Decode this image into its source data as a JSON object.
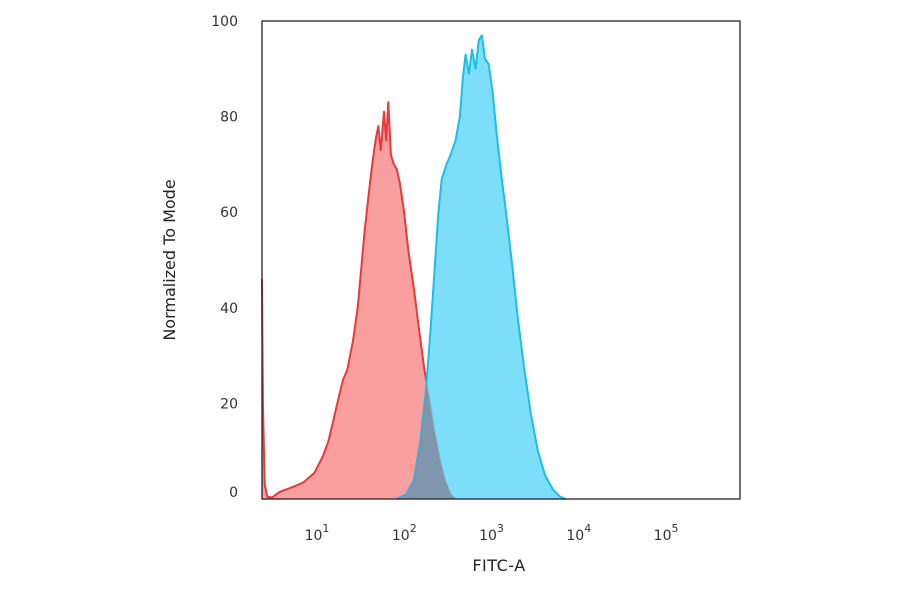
{
  "chart_data": {
    "type": "area",
    "title": "",
    "xlabel": "FITC-A",
    "ylabel": "Normalized To Mode",
    "xscale": "log",
    "xlim": [
      2,
      600000
    ],
    "ylim": [
      0,
      100
    ],
    "grid": false,
    "legend": "none",
    "x_ticks": [
      {
        "base": "10",
        "exp": "1",
        "value": 10
      },
      {
        "base": "10",
        "exp": "2",
        "value": 100
      },
      {
        "base": "10",
        "exp": "3",
        "value": 1000
      },
      {
        "base": "10",
        "exp": "4",
        "value": 10000
      },
      {
        "base": "10",
        "exp": "5",
        "value": 100000
      }
    ],
    "y_ticks": [
      {
        "label": "0",
        "value": 0
      },
      {
        "label": "20",
        "value": 20
      },
      {
        "label": "40",
        "value": 40
      },
      {
        "label": "60",
        "value": 60
      },
      {
        "label": "80",
        "value": 80
      },
      {
        "label": "100",
        "value": 100
      }
    ],
    "series": [
      {
        "color": "#e83a3a",
        "fill": "#f98e8e",
        "points": [
          [
            2,
            46
          ],
          [
            2.05,
            20
          ],
          [
            2.15,
            3
          ],
          [
            2.3,
            0.5
          ],
          [
            2.6,
            0.3
          ],
          [
            3.2,
            1.5
          ],
          [
            4.5,
            2.5
          ],
          [
            6,
            3.5
          ],
          [
            8,
            5.5
          ],
          [
            10,
            9
          ],
          [
            11.5,
            12
          ],
          [
            13,
            16
          ],
          [
            15,
            21
          ],
          [
            17,
            25
          ],
          [
            19,
            27
          ],
          [
            22,
            33
          ],
          [
            25,
            40
          ],
          [
            28,
            50
          ],
          [
            30,
            56
          ],
          [
            33,
            63
          ],
          [
            36,
            69
          ],
          [
            40,
            75
          ],
          [
            43,
            78
          ],
          [
            46,
            73
          ],
          [
            50,
            81
          ],
          [
            53,
            75
          ],
          [
            56,
            83
          ],
          [
            60,
            72
          ],
          [
            65,
            70
          ],
          [
            70,
            69
          ],
          [
            76,
            66
          ],
          [
            85,
            60
          ],
          [
            95,
            52
          ],
          [
            110,
            44
          ],
          [
            125,
            36
          ],
          [
            145,
            27
          ],
          [
            165,
            21
          ],
          [
            190,
            14
          ],
          [
            220,
            8
          ],
          [
            250,
            4
          ],
          [
            290,
            1
          ],
          [
            330,
            0
          ]
        ]
      },
      {
        "color": "#1ebde6",
        "fill": "#66d8f8",
        "points": [
          [
            70,
            0
          ],
          [
            90,
            1
          ],
          [
            110,
            4
          ],
          [
            130,
            12
          ],
          [
            150,
            22
          ],
          [
            170,
            35
          ],
          [
            190,
            48
          ],
          [
            210,
            60
          ],
          [
            230,
            67
          ],
          [
            260,
            70
          ],
          [
            290,
            72
          ],
          [
            330,
            75
          ],
          [
            370,
            80
          ],
          [
            400,
            88
          ],
          [
            430,
            93
          ],
          [
            470,
            89
          ],
          [
            510,
            94
          ],
          [
            560,
            90
          ],
          [
            610,
            96
          ],
          [
            660,
            97
          ],
          [
            720,
            92
          ],
          [
            790,
            91
          ],
          [
            880,
            85
          ],
          [
            980,
            76
          ],
          [
            1100,
            68
          ],
          [
            1250,
            60
          ],
          [
            1450,
            50
          ],
          [
            1700,
            38
          ],
          [
            2000,
            28
          ],
          [
            2400,
            18
          ],
          [
            2900,
            10
          ],
          [
            3500,
            5
          ],
          [
            4300,
            2
          ],
          [
            5200,
            0.5
          ],
          [
            6000,
            0
          ]
        ]
      }
    ]
  }
}
